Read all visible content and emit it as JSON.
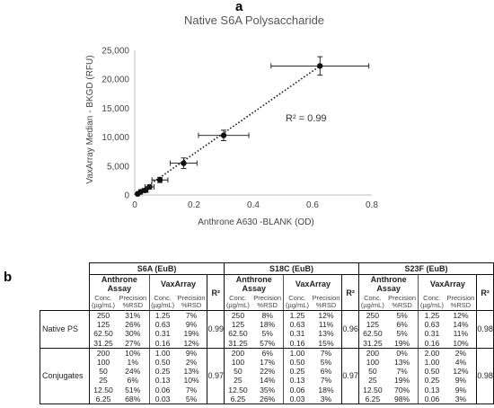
{
  "panel_a_label": "a",
  "panel_b_label": "b",
  "chart_data": {
    "type": "scatter",
    "title": "Native S6A Polysaccharide",
    "xlabel": "Anthrone A630 -BLANK (OD)",
    "ylabel": "VaxArray Median - BKGD (RFU)",
    "xlim": [
      0,
      0.8
    ],
    "ylim": [
      0,
      25000
    ],
    "x_ticks": [
      "0",
      "0.2",
      "0.4",
      "0.6",
      "0.8"
    ],
    "y_ticks": [
      "0",
      "5,000",
      "10,000",
      "15,000",
      "20,000",
      "25,000"
    ],
    "x_tick_values": [
      0,
      0.2,
      0.4,
      0.6,
      0.8
    ],
    "y_tick_values": [
      0,
      5000,
      10000,
      15000,
      20000,
      25000
    ],
    "grid": false,
    "points": [
      {
        "x": 0.01,
        "y": 200,
        "xerr": 0.004,
        "yerr": 80
      },
      {
        "x": 0.02,
        "y": 550,
        "xerr": 0.006,
        "yerr": 150
      },
      {
        "x": 0.035,
        "y": 800,
        "xerr": 0.01,
        "yerr": 250
      },
      {
        "x": 0.05,
        "y": 1400,
        "xerr": 0.015,
        "yerr": 350
      },
      {
        "x": 0.085,
        "y": 2600,
        "xerr": 0.027,
        "yerr": 450
      },
      {
        "x": 0.165,
        "y": 5500,
        "xerr": 0.045,
        "yerr": 900
      },
      {
        "x": 0.3,
        "y": 10300,
        "xerr": 0.085,
        "yerr": 900
      },
      {
        "x": 0.625,
        "y": 22300,
        "xerr": 0.165,
        "yerr": 1600
      }
    ],
    "trendline": {
      "style": "dotted",
      "x": [
        0,
        0.625
      ],
      "y": [
        0,
        22300
      ]
    },
    "annotation": "R² = 0.99"
  },
  "table": {
    "groups": [
      "S6A (EuB)",
      "S18C (EuB)",
      "S23F (EuB)"
    ],
    "subgroups": [
      "Anthrone Assay",
      "VaxArray"
    ],
    "col_conc": [
      "Conc.",
      "(µg/mL)"
    ],
    "col_prec": [
      "Precision",
      "%RSD"
    ],
    "r2_header": "R²",
    "sections": [
      {
        "label": "Native PS",
        "groups": [
          {
            "rows": [
              [
                "250",
                "31%",
                "1.25",
                "7%"
              ],
              [
                "125",
                "26%",
                "0.63",
                "9%"
              ],
              [
                "62.50",
                "30%",
                "0.31",
                "19%"
              ],
              [
                "31.25",
                "27%",
                "0.16",
                "12%"
              ]
            ],
            "r2": "0.99"
          },
          {
            "rows": [
              [
                "250",
                "8%",
                "1.25",
                "12%"
              ],
              [
                "125",
                "18%",
                "0.63",
                "11%"
              ],
              [
                "62.50",
                "5%",
                "0.31",
                "13%"
              ],
              [
                "31.25",
                "57%",
                "0.16",
                "15%"
              ]
            ],
            "r2": "0.96"
          },
          {
            "rows": [
              [
                "250",
                "5%",
                "1.25",
                "12%"
              ],
              [
                "125",
                "6%",
                "0.63",
                "14%"
              ],
              [
                "62.50",
                "5%",
                "0.31",
                "11%"
              ],
              [
                "31.25",
                "19%",
                "0.16",
                "10%"
              ]
            ],
            "r2": "0.98"
          }
        ]
      },
      {
        "label": "Conjugates",
        "groups": [
          {
            "rows": [
              [
                "200",
                "10%",
                "1.00",
                "9%"
              ],
              [
                "100",
                "1%",
                "0.50",
                "2%"
              ],
              [
                "50",
                "24%",
                "0.25",
                "13%"
              ],
              [
                "25",
                "6%",
                "0.13",
                "10%"
              ],
              [
                "12.50",
                "51%",
                "0.06",
                "7%"
              ],
              [
                "6.25",
                "68%",
                "0.03",
                "5%"
              ]
            ],
            "r2": "0.97"
          },
          {
            "rows": [
              [
                "200",
                "6%",
                "1.00",
                "7%"
              ],
              [
                "100",
                "17%",
                "0.50",
                "5%"
              ],
              [
                "50",
                "22%",
                "0.25",
                "6%"
              ],
              [
                "25",
                "14%",
                "0.13",
                "7%"
              ],
              [
                "12.50",
                "35%",
                "0.06",
                "18%"
              ],
              [
                "6.25",
                "26%",
                "0.03",
                "3%"
              ]
            ],
            "r2": "0.97"
          },
          {
            "rows": [
              [
                "200",
                "0%",
                "2.00",
                "2%"
              ],
              [
                "100",
                "13%",
                "1.00",
                "4%"
              ],
              [
                "50",
                "7%",
                "0.50",
                "12%"
              ],
              [
                "25",
                "19%",
                "0.25",
                "9%"
              ],
              [
                "12.50",
                "70%",
                "0.13",
                "9%"
              ],
              [
                "6.25",
                "98%",
                "0.06",
                "3%"
              ]
            ],
            "r2": "0.98"
          }
        ]
      }
    ]
  }
}
